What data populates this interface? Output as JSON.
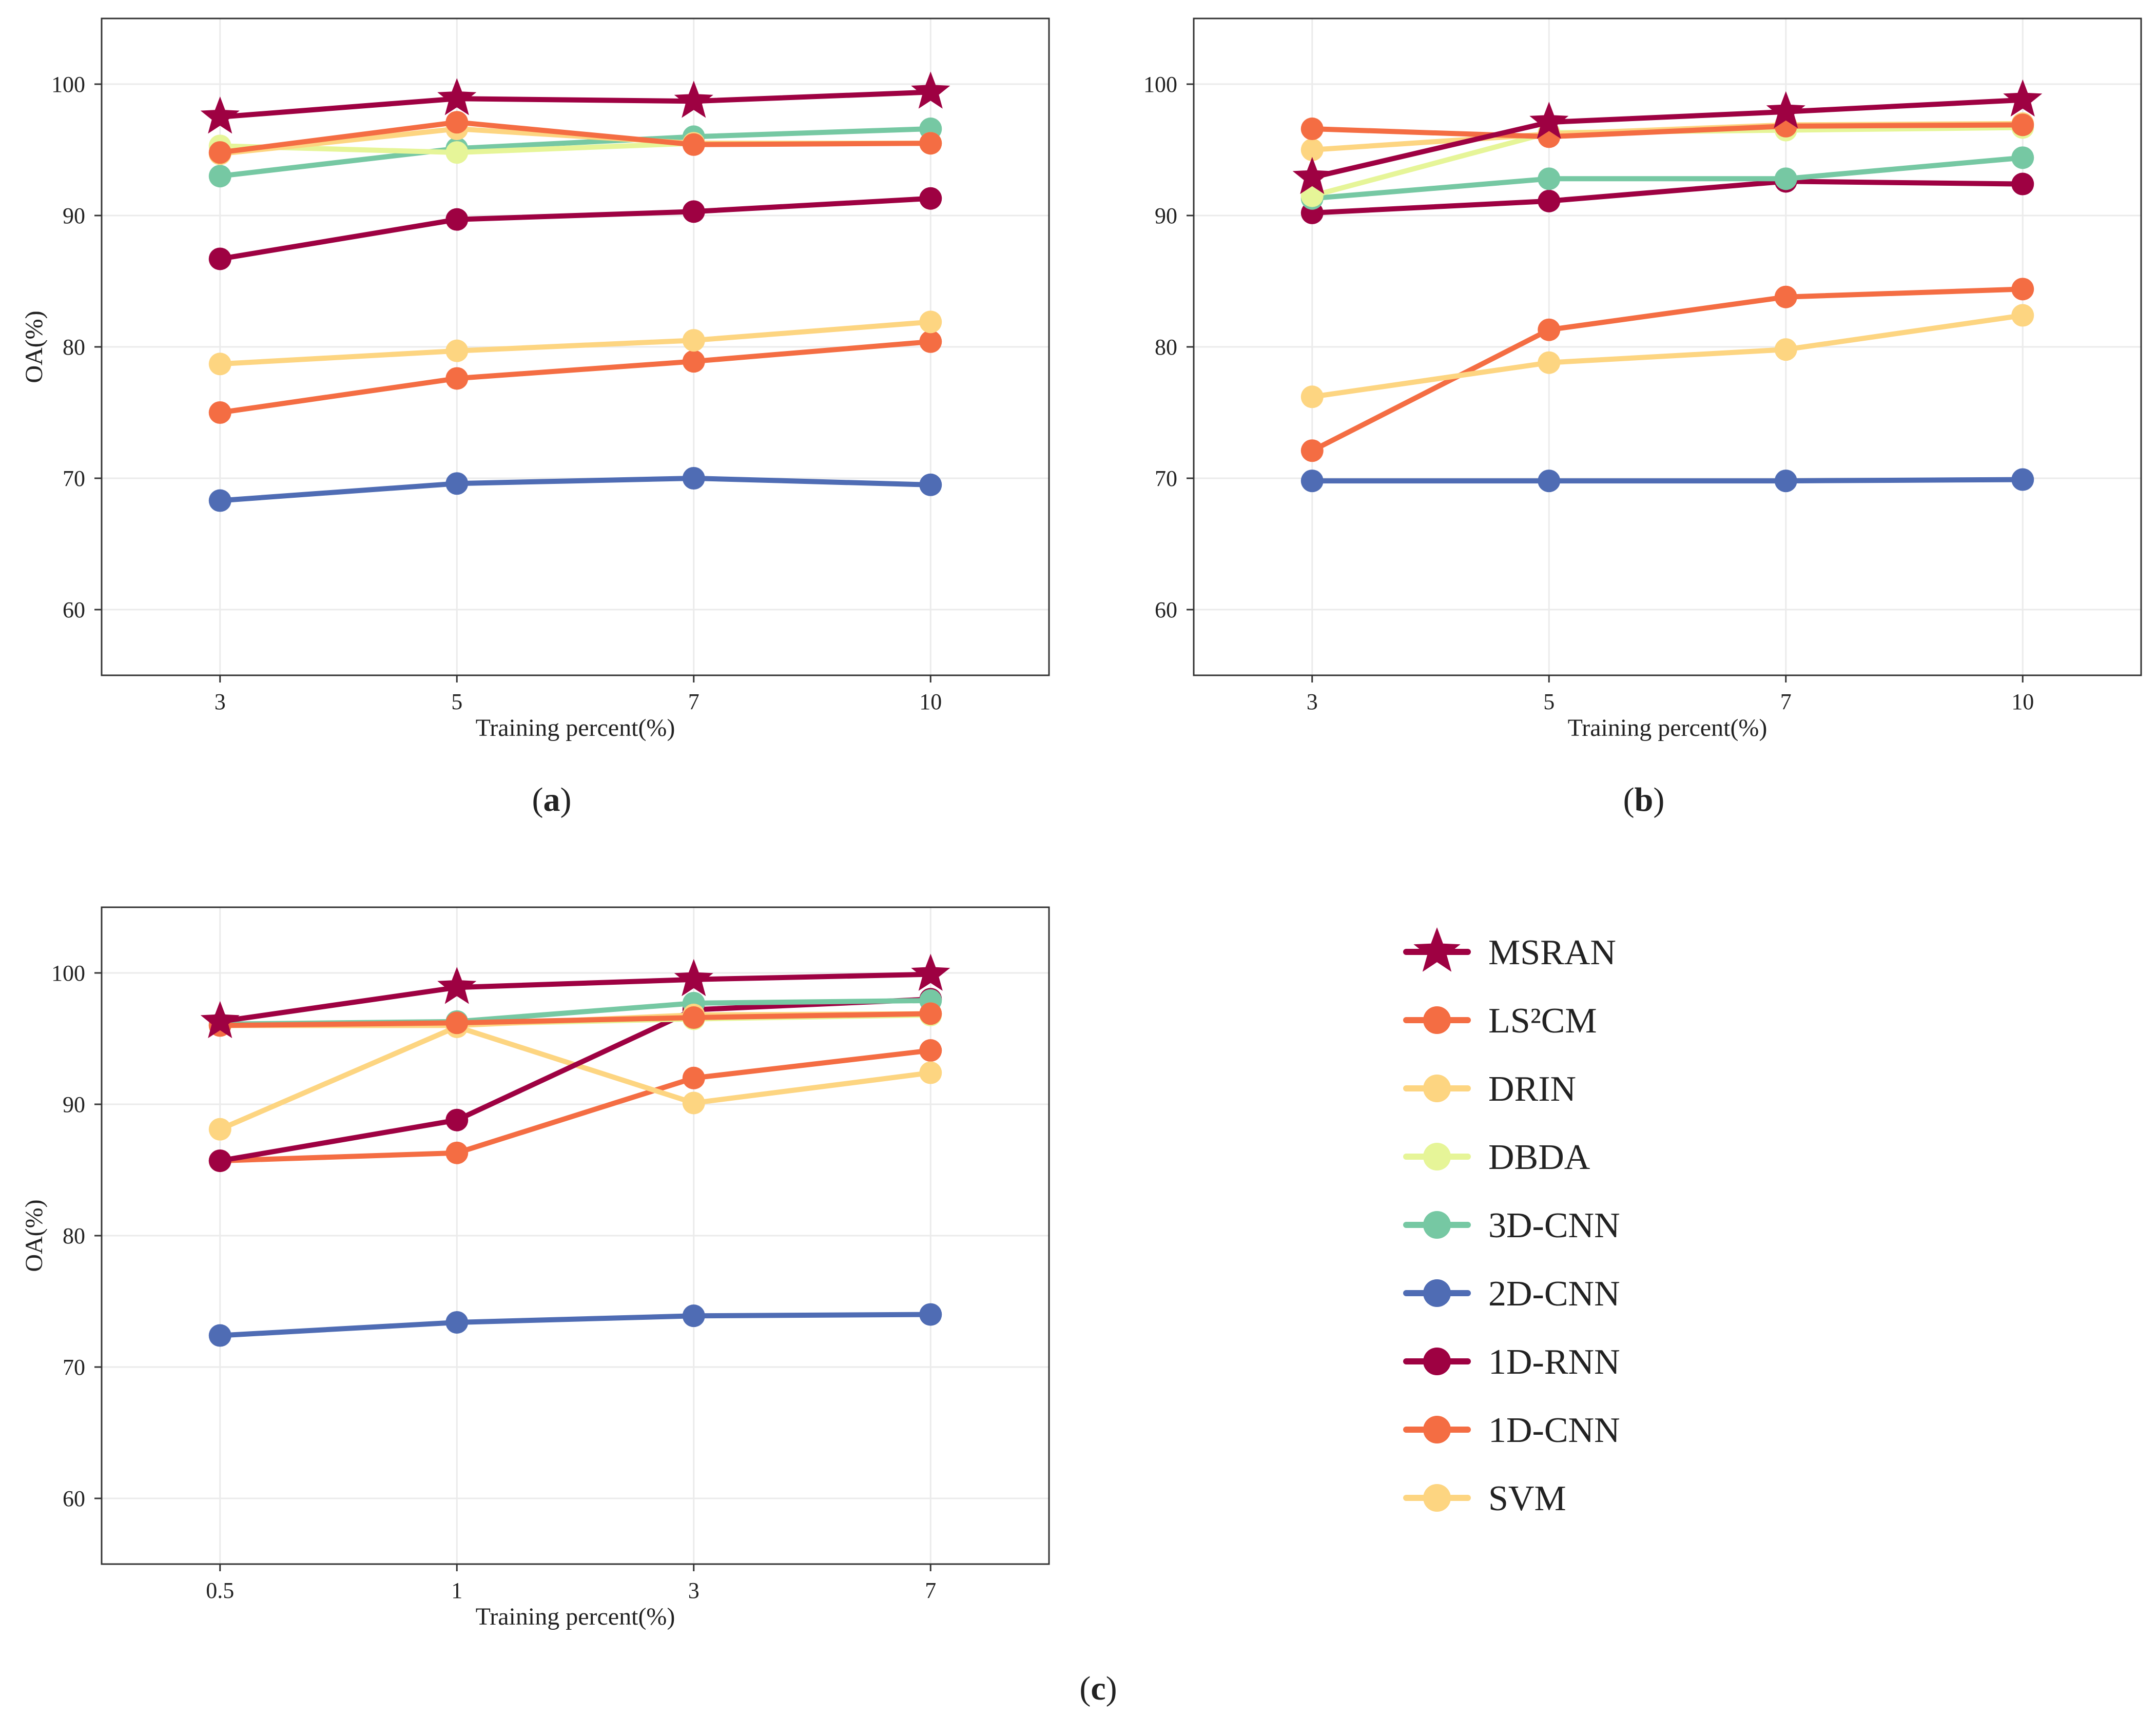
{
  "colors": {
    "MSRAN": "#9e0142",
    "LS2CM": "#f46d43",
    "DRIN": "#fdd581",
    "DBDA": "#e6f598",
    "3D-CNN": "#76c8a3",
    "2D-CNN": "#4f6cb4",
    "1D-RNN": "#9e0142",
    "1D-CNN": "#f46d43",
    "SVM": "#fdd581"
  },
  "legend": [
    {
      "key": "MSRAN",
      "label": "MSRAN",
      "marker": "star"
    },
    {
      "key": "LS2CM",
      "label": "LS²CM",
      "marker": "circle"
    },
    {
      "key": "DRIN",
      "label": "DRIN",
      "marker": "circle"
    },
    {
      "key": "DBDA",
      "label": "DBDA",
      "marker": "circle"
    },
    {
      "key": "3D-CNN",
      "label": "3D-CNN",
      "marker": "circle"
    },
    {
      "key": "2D-CNN",
      "label": "2D-CNN",
      "marker": "circle"
    },
    {
      "key": "1D-RNN",
      "label": "1D-RNN",
      "marker": "circle"
    },
    {
      "key": "1D-CNN",
      "label": "1D-CNN",
      "marker": "circle"
    },
    {
      "key": "SVM",
      "label": "SVM",
      "marker": "circle"
    }
  ],
  "chart_data": [
    {
      "id": "a",
      "type": "line",
      "caption": {
        "open": "(",
        "letter": "a",
        "close": ")"
      },
      "xlabel": "Training percent(%)",
      "ylabel": "OA(%)",
      "categories": [
        "3",
        "5",
        "7",
        "10"
      ],
      "ylim": [
        55,
        105
      ],
      "yticks": [
        60,
        70,
        80,
        90,
        100
      ],
      "grid": true,
      "series": [
        {
          "name": "2D-CNN",
          "key": "2D-CNN",
          "marker": "circle",
          "values": [
            68.3,
            69.6,
            70.0,
            69.5
          ]
        },
        {
          "name": "1D-CNN",
          "key": "1D-CNN",
          "marker": "circle",
          "values": [
            75.0,
            77.6,
            78.9,
            80.4
          ]
        },
        {
          "name": "SVM",
          "key": "SVM",
          "marker": "circle",
          "values": [
            78.7,
            79.7,
            80.5,
            81.9
          ]
        },
        {
          "name": "1D-RNN",
          "key": "1D-RNN",
          "marker": "circle",
          "values": [
            86.7,
            89.7,
            90.3,
            91.3
          ]
        },
        {
          "name": "3D-CNN",
          "key": "3D-CNN",
          "marker": "circle",
          "values": [
            93.0,
            95.1,
            96.0,
            96.6
          ]
        },
        {
          "name": "DBDA",
          "key": "DBDA",
          "marker": "circle",
          "values": [
            95.3,
            94.8,
            95.5,
            95.5
          ]
        },
        {
          "name": "DRIN",
          "key": "DRIN",
          "marker": "circle",
          "values": [
            94.7,
            96.6,
            95.5,
            95.5
          ]
        },
        {
          "name": "LS²CM",
          "key": "LS2CM",
          "marker": "circle",
          "values": [
            94.8,
            97.1,
            95.4,
            95.5
          ]
        },
        {
          "name": "MSRAN",
          "key": "MSRAN",
          "marker": "star",
          "values": [
            97.5,
            98.9,
            98.7,
            99.4
          ]
        }
      ]
    },
    {
      "id": "b",
      "type": "line",
      "caption": {
        "open": "(",
        "letter": "b",
        "close": ")"
      },
      "xlabel": "Training percent(%)",
      "ylabel": "OA(%)",
      "categories": [
        "3",
        "5",
        "7",
        "10"
      ],
      "ylim": [
        55,
        105
      ],
      "yticks": [
        60,
        70,
        80,
        90,
        100
      ],
      "grid": true,
      "series": [
        {
          "name": "2D-CNN",
          "key": "2D-CNN",
          "marker": "circle",
          "values": [
            69.8,
            69.8,
            69.8,
            69.9
          ]
        },
        {
          "name": "1D-CNN",
          "key": "1D-CNN",
          "marker": "circle",
          "values": [
            72.1,
            81.3,
            83.8,
            84.4
          ]
        },
        {
          "name": "SVM",
          "key": "SVM",
          "marker": "circle",
          "values": [
            76.2,
            78.8,
            79.8,
            82.4
          ]
        },
        {
          "name": "1D-RNN",
          "key": "1D-RNN",
          "marker": "circle",
          "values": [
            90.2,
            91.1,
            92.6,
            92.4
          ]
        },
        {
          "name": "3D-CNN",
          "key": "3D-CNN",
          "marker": "circle",
          "values": [
            91.3,
            92.8,
            92.8,
            94.4
          ]
        },
        {
          "name": "DBDA",
          "key": "DBDA",
          "marker": "circle",
          "values": [
            91.5,
            96.3,
            96.5,
            96.7
          ]
        },
        {
          "name": "DRIN",
          "key": "DRIN",
          "marker": "circle",
          "values": [
            95.0,
            96.2,
            96.9,
            97.0
          ]
        },
        {
          "name": "LS²CM",
          "key": "LS2CM",
          "marker": "circle",
          "values": [
            96.6,
            96.0,
            96.8,
            96.9
          ]
        },
        {
          "name": "MSRAN",
          "key": "MSRAN",
          "marker": "star",
          "values": [
            92.9,
            97.1,
            97.9,
            98.8
          ]
        }
      ]
    },
    {
      "id": "c",
      "type": "line",
      "caption": {
        "open": "(",
        "letter": "c",
        "close": ")"
      },
      "xlabel": "Training percent(%)",
      "ylabel": "OA(%)",
      "categories": [
        "0.5",
        "1",
        "3",
        "7"
      ],
      "ylim": [
        55,
        105
      ],
      "yticks": [
        60,
        70,
        80,
        90,
        100
      ],
      "grid": true,
      "series": [
        {
          "name": "2D-CNN",
          "key": "2D-CNN",
          "marker": "circle",
          "values": [
            72.4,
            73.4,
            73.9,
            74.0
          ]
        },
        {
          "name": "1D-CNN",
          "key": "1D-CNN",
          "marker": "circle",
          "values": [
            85.7,
            86.3,
            92.0,
            94.1
          ]
        },
        {
          "name": "SVM",
          "key": "SVM",
          "marker": "circle",
          "values": [
            88.1,
            95.9,
            90.1,
            92.4
          ]
        },
        {
          "name": "1D-RNN",
          "key": "1D-RNN",
          "marker": "circle",
          "values": [
            85.7,
            88.8,
            97.2,
            98.0
          ]
        },
        {
          "name": "3D-CNN",
          "key": "3D-CNN",
          "marker": "circle",
          "values": [
            96.1,
            96.3,
            97.7,
            97.9
          ]
        },
        {
          "name": "DBDA",
          "key": "DBDA",
          "marker": "circle",
          "values": [
            96.0,
            96.1,
            96.5,
            96.8
          ]
        },
        {
          "name": "DRIN",
          "key": "DRIN",
          "marker": "circle",
          "values": [
            96.0,
            96.0,
            96.8,
            96.9
          ]
        },
        {
          "name": "LS²CM",
          "key": "LS2CM",
          "marker": "circle",
          "values": [
            96.0,
            96.2,
            96.6,
            96.9
          ]
        },
        {
          "name": "MSRAN",
          "key": "MSRAN",
          "marker": "star",
          "values": [
            96.3,
            98.9,
            99.5,
            99.9
          ]
        }
      ]
    }
  ]
}
